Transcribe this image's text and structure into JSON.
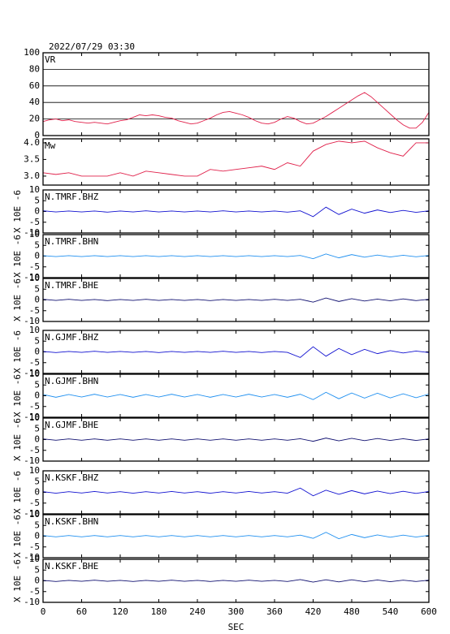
{
  "chart_data": [
    {
      "type": "line",
      "title": "2022/07/29 03:30",
      "label": "VR",
      "color": "#e0204a",
      "grid": true,
      "xlim": [
        0,
        600
      ],
      "xticks": [
        0,
        60,
        120,
        180,
        240,
        300,
        360,
        420,
        480,
        540,
        600
      ],
      "ylim": [
        0,
        100
      ],
      "yticks": [
        0,
        20,
        40,
        60,
        80,
        100
      ],
      "x": [
        0,
        10,
        20,
        30,
        40,
        50,
        60,
        70,
        80,
        90,
        100,
        110,
        120,
        130,
        140,
        150,
        160,
        170,
        180,
        190,
        200,
        210,
        220,
        230,
        240,
        250,
        260,
        270,
        280,
        290,
        300,
        310,
        320,
        330,
        340,
        350,
        360,
        370,
        380,
        390,
        400,
        410,
        420,
        430,
        440,
        450,
        460,
        470,
        480,
        490,
        500,
        510,
        520,
        530,
        540,
        550,
        560,
        570,
        580,
        590,
        600
      ],
      "values": [
        17,
        19,
        20,
        18,
        19,
        17,
        16,
        15,
        16,
        15,
        14,
        16,
        18,
        19,
        22,
        25,
        24,
        25,
        24,
        22,
        21,
        18,
        16,
        14,
        15,
        18,
        21,
        25,
        28,
        29,
        27,
        25,
        22,
        18,
        15,
        14,
        16,
        20,
        23,
        21,
        17,
        14,
        15,
        19,
        23,
        28,
        33,
        38,
        43,
        48,
        52,
        47,
        40,
        33,
        26,
        19,
        13,
        9,
        9,
        16,
        28
      ]
    },
    {
      "type": "line",
      "label": "Mw",
      "color": "#e0204a",
      "xlim": [
        0,
        600
      ],
      "xticks": [
        0,
        60,
        120,
        180,
        240,
        300,
        360,
        420,
        480,
        540,
        600
      ],
      "ylim": [
        2.73,
        4.12
      ],
      "yticks": [
        {
          "value": 3,
          "label": "3.0"
        },
        {
          "value": 3.5,
          "label": "3.5"
        },
        {
          "value": 4,
          "label": "4.0"
        }
      ],
      "x": [
        0,
        20,
        40,
        60,
        80,
        100,
        120,
        140,
        160,
        180,
        200,
        220,
        240,
        260,
        280,
        300,
        320,
        340,
        360,
        380,
        400,
        420,
        440,
        460,
        480,
        500,
        520,
        540,
        560,
        580,
        600
      ],
      "values": [
        3.1,
        3.05,
        3.1,
        3.0,
        3.0,
        3.0,
        3.1,
        3.0,
        3.15,
        3.1,
        3.05,
        3.0,
        3.0,
        3.2,
        3.15,
        3.2,
        3.25,
        3.3,
        3.2,
        3.4,
        3.3,
        3.75,
        3.95,
        4.05,
        4.0,
        4.05,
        3.85,
        3.7,
        3.6,
        4.0,
        4.0
      ]
    },
    {
      "type": "line",
      "label": "N.TMRF.BHZ",
      "ylabel": "X 10E -6",
      "color": "#1010d0",
      "xlim": [
        0,
        600
      ],
      "xticks": [
        0,
        60,
        120,
        180,
        240,
        300,
        360,
        420,
        480,
        540,
        600
      ],
      "ylim": [
        -10,
        10
      ],
      "yticks": [
        -10,
        -5,
        0,
        5,
        10
      ],
      "x": [
        0,
        20,
        40,
        60,
        80,
        100,
        120,
        140,
        160,
        180,
        200,
        220,
        240,
        260,
        280,
        300,
        320,
        340,
        360,
        380,
        400,
        420,
        440,
        460,
        480,
        500,
        520,
        540,
        560,
        580,
        600
      ],
      "values": [
        0.3,
        -0.2,
        0.2,
        -0.2,
        0.2,
        -0.3,
        0.2,
        -0.2,
        0.3,
        -0.2,
        0.2,
        -0.2,
        0.2,
        -0.2,
        0.3,
        -0.2,
        0.2,
        -0.2,
        0.2,
        -0.3,
        0.3,
        -2.4,
        2.0,
        -1.4,
        1.1,
        -0.8,
        0.7,
        -0.5,
        0.5,
        -0.4,
        0.3
      ]
    },
    {
      "type": "line",
      "label": "N.TMRF.BHN",
      "ylabel": "X 10E -6",
      "color": "#2090f0",
      "xlim": [
        0,
        600
      ],
      "xticks": [
        0,
        60,
        120,
        180,
        240,
        300,
        360,
        420,
        480,
        540,
        600
      ],
      "ylim": [
        -10,
        10
      ],
      "yticks": [
        -10,
        -5,
        0,
        5,
        10
      ],
      "x": [
        0,
        20,
        40,
        60,
        80,
        100,
        120,
        140,
        160,
        180,
        200,
        220,
        240,
        260,
        280,
        300,
        320,
        340,
        360,
        380,
        400,
        420,
        440,
        460,
        480,
        500,
        520,
        540,
        560,
        580,
        600
      ],
      "values": [
        0.2,
        -0.2,
        0.2,
        -0.2,
        0.2,
        -0.2,
        0.2,
        -0.2,
        0.2,
        -0.2,
        0.2,
        -0.2,
        0.2,
        -0.2,
        0.2,
        -0.2,
        0.2,
        -0.2,
        0.2,
        -0.2,
        0.3,
        -1.2,
        1.0,
        -0.8,
        0.7,
        -0.5,
        0.5,
        -0.4,
        0.4,
        -0.3,
        0.3
      ]
    },
    {
      "type": "line",
      "label": "N.TMRF.BHE",
      "ylabel": "X 10E -6",
      "color": "#101070",
      "xlim": [
        0,
        600
      ],
      "xticks": [
        0,
        60,
        120,
        180,
        240,
        300,
        360,
        420,
        480,
        540,
        600
      ],
      "ylim": [
        -10,
        10
      ],
      "yticks": [
        -10,
        -5,
        0,
        5,
        10
      ],
      "x": [
        0,
        20,
        40,
        60,
        80,
        100,
        120,
        140,
        160,
        180,
        200,
        220,
        240,
        260,
        280,
        300,
        320,
        340,
        360,
        380,
        400,
        420,
        440,
        460,
        480,
        500,
        520,
        540,
        560,
        580,
        600
      ],
      "values": [
        0.3,
        -0.2,
        0.3,
        -0.2,
        0.2,
        -0.3,
        0.2,
        -0.2,
        0.3,
        -0.2,
        0.2,
        -0.2,
        0.2,
        -0.3,
        0.2,
        -0.2,
        0.2,
        -0.2,
        0.3,
        -0.2,
        0.3,
        -1.0,
        0.9,
        -0.7,
        0.6,
        -0.5,
        0.4,
        -0.4,
        0.5,
        -0.3,
        0.3
      ]
    },
    {
      "type": "line",
      "label": "N.GJMF.BHZ",
      "ylabel": "X 10E -6",
      "color": "#1010d0",
      "xlim": [
        0,
        600
      ],
      "xticks": [
        0,
        60,
        120,
        180,
        240,
        300,
        360,
        420,
        480,
        540,
        600
      ],
      "ylim": [
        -10,
        10
      ],
      "yticks": [
        -10,
        -5,
        0,
        5,
        10
      ],
      "x": [
        0,
        20,
        40,
        60,
        80,
        100,
        120,
        140,
        160,
        180,
        200,
        220,
        240,
        260,
        280,
        300,
        320,
        340,
        360,
        380,
        400,
        420,
        440,
        460,
        480,
        500,
        520,
        540,
        560,
        580,
        600
      ],
      "values": [
        0.2,
        -0.3,
        0.2,
        -0.2,
        0.3,
        -0.2,
        0.2,
        -0.2,
        0.2,
        -0.3,
        0.2,
        -0.2,
        0.2,
        -0.2,
        0.3,
        -0.2,
        0.2,
        -0.3,
        0.2,
        -0.2,
        -2.6,
        2.4,
        -2.0,
        1.6,
        -1.3,
        1.2,
        -0.8,
        0.6,
        -0.5,
        0.4,
        -0.3
      ]
    },
    {
      "type": "line",
      "label": "N.GJMF.BHN",
      "ylabel": "X 10E -6",
      "color": "#2090f0",
      "xlim": [
        0,
        600
      ],
      "xticks": [
        0,
        60,
        120,
        180,
        240,
        300,
        360,
        420,
        480,
        540,
        600
      ],
      "ylim": [
        -10,
        10
      ],
      "yticks": [
        -10,
        -5,
        0,
        5,
        10
      ],
      "x": [
        0,
        20,
        40,
        60,
        80,
        100,
        120,
        140,
        160,
        180,
        200,
        220,
        240,
        260,
        280,
        300,
        320,
        340,
        360,
        380,
        400,
        420,
        440,
        460,
        480,
        500,
        520,
        540,
        560,
        580,
        600
      ],
      "values": [
        0.6,
        -0.7,
        0.6,
        -0.6,
        0.7,
        -0.6,
        0.6,
        -0.7,
        0.6,
        -0.6,
        0.7,
        -0.6,
        0.6,
        -0.7,
        0.6,
        -0.6,
        0.7,
        -0.6,
        0.6,
        -0.7,
        0.7,
        -1.8,
        1.6,
        -1.4,
        1.3,
        -1.1,
        1.2,
        -1.0,
        0.9,
        -0.9,
        0.8
      ]
    },
    {
      "type": "line",
      "label": "N.GJMF.BHE",
      "ylabel": "X 10E -6",
      "color": "#101070",
      "xlim": [
        0,
        600
      ],
      "xticks": [
        0,
        60,
        120,
        180,
        240,
        300,
        360,
        420,
        480,
        540,
        600
      ],
      "ylim": [
        -10,
        10
      ],
      "yticks": [
        -10,
        -5,
        0,
        5,
        10
      ],
      "x": [
        0,
        20,
        40,
        60,
        80,
        100,
        120,
        140,
        160,
        180,
        200,
        220,
        240,
        260,
        280,
        300,
        320,
        340,
        360,
        380,
        400,
        420,
        440,
        460,
        480,
        500,
        520,
        540,
        560,
        580,
        600
      ],
      "values": [
        0.3,
        -0.3,
        0.3,
        -0.3,
        0.3,
        -0.3,
        0.3,
        -0.3,
        0.3,
        -0.3,
        0.3,
        -0.3,
        0.3,
        -0.3,
        0.3,
        -0.3,
        0.3,
        -0.3,
        0.3,
        -0.3,
        0.4,
        -0.8,
        0.7,
        -0.6,
        0.6,
        -0.5,
        0.5,
        -0.4,
        0.4,
        -0.4,
        0.3
      ]
    },
    {
      "type": "line",
      "label": "N.KSKF.BHZ",
      "ylabel": "X 10E -6",
      "color": "#1010d0",
      "xlim": [
        0,
        600
      ],
      "xticks": [
        0,
        60,
        120,
        180,
        240,
        300,
        360,
        420,
        480,
        540,
        600
      ],
      "ylim": [
        -10,
        10
      ],
      "yticks": [
        -10,
        -5,
        0,
        5,
        10
      ],
      "x": [
        0,
        20,
        40,
        60,
        80,
        100,
        120,
        140,
        160,
        180,
        200,
        220,
        240,
        260,
        280,
        300,
        320,
        340,
        360,
        380,
        400,
        420,
        440,
        460,
        480,
        500,
        520,
        540,
        560,
        580,
        600
      ],
      "values": [
        0.3,
        -0.4,
        0.3,
        -0.3,
        0.4,
        -0.3,
        0.3,
        -0.4,
        0.3,
        -0.3,
        0.4,
        -0.3,
        0.3,
        -0.4,
        0.3,
        -0.3,
        0.4,
        -0.3,
        0.3,
        -0.4,
        2.0,
        -1.6,
        1.0,
        -0.9,
        0.8,
        -0.7,
        0.6,
        -0.6,
        0.5,
        -0.5,
        0.4
      ]
    },
    {
      "type": "line",
      "label": "N.KSKF.BHN",
      "ylabel": "X 10E -6",
      "color": "#2090f0",
      "xlim": [
        0,
        600
      ],
      "xticks": [
        0,
        60,
        120,
        180,
        240,
        300,
        360,
        420,
        480,
        540,
        600
      ],
      "ylim": [
        -10,
        10
      ],
      "yticks": [
        -10,
        -5,
        0,
        5,
        10
      ],
      "x": [
        0,
        20,
        40,
        60,
        80,
        100,
        120,
        140,
        160,
        180,
        200,
        220,
        240,
        260,
        280,
        300,
        320,
        340,
        360,
        380,
        400,
        420,
        440,
        460,
        480,
        500,
        520,
        540,
        560,
        580,
        600
      ],
      "values": [
        0.3,
        -0.3,
        0.3,
        -0.3,
        0.3,
        -0.3,
        0.3,
        -0.3,
        0.3,
        -0.3,
        0.3,
        -0.3,
        0.3,
        -0.3,
        0.3,
        -0.3,
        0.3,
        -0.3,
        0.3,
        -0.3,
        0.5,
        -1.0,
        1.8,
        -1.2,
        0.8,
        -0.7,
        0.6,
        -0.5,
        0.5,
        -0.4,
        0.4
      ]
    },
    {
      "type": "line",
      "label": "N.KSKF.BHE",
      "ylabel": "X 10E -6",
      "color": "#101070",
      "xlabel": "SEC",
      "xlim": [
        0,
        600
      ],
      "xticks": [
        0,
        60,
        120,
        180,
        240,
        300,
        360,
        420,
        480,
        540,
        600
      ],
      "ylim": [
        -10,
        10
      ],
      "yticks": [
        -10,
        -5,
        0,
        5,
        10
      ],
      "x": [
        0,
        20,
        40,
        60,
        80,
        100,
        120,
        140,
        160,
        180,
        200,
        220,
        240,
        260,
        280,
        300,
        320,
        340,
        360,
        380,
        400,
        420,
        440,
        460,
        480,
        500,
        520,
        540,
        560,
        580,
        600
      ],
      "values": [
        0.2,
        -0.3,
        0.2,
        -0.2,
        0.3,
        -0.2,
        0.2,
        -0.3,
        0.2,
        -0.2,
        0.3,
        -0.2,
        0.2,
        -0.3,
        0.2,
        -0.2,
        0.3,
        -0.2,
        0.2,
        -0.3,
        0.6,
        -0.6,
        0.5,
        -0.5,
        0.5,
        -0.4,
        0.4,
        -0.4,
        0.3,
        -0.3,
        0.3
      ]
    }
  ]
}
